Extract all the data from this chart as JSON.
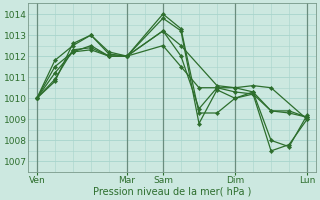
{
  "background_color": "#cce8e0",
  "grid_color": "#a8d4cc",
  "line_color": "#2d6e2d",
  "marker_color": "#2d6e2d",
  "xlabel": "Pression niveau de la mer( hPa )",
  "ylim": [
    1006.5,
    1014.5
  ],
  "yticks": [
    1007,
    1008,
    1009,
    1010,
    1011,
    1012,
    1013,
    1014
  ],
  "x_day_labels": [
    "Ven",
    "Mar",
    "Sam",
    "Dim",
    "Lun"
  ],
  "x_day_positions": [
    0,
    10,
    14,
    22,
    30
  ],
  "x_separator_positions": [
    0,
    10,
    14,
    22,
    30
  ],
  "xlim": [
    -1,
    31
  ],
  "series": [
    {
      "x": [
        0,
        2,
        4,
        6,
        8,
        10,
        14,
        16,
        20,
        22,
        24,
        26,
        30
      ],
      "y": [
        1010.0,
        1010.8,
        1012.6,
        1013.0,
        1012.2,
        1012.0,
        1013.2,
        1012.5,
        1010.6,
        1010.5,
        1010.6,
        1010.5,
        1009.0
      ]
    },
    {
      "x": [
        0,
        2,
        4,
        6,
        8,
        10,
        14,
        16,
        18,
        20,
        22,
        24,
        26,
        28,
        30
      ],
      "y": [
        1010.0,
        1011.8,
        1012.5,
        1013.0,
        1012.1,
        1012.0,
        1014.0,
        1013.3,
        1009.3,
        1009.3,
        1010.0,
        1010.3,
        1009.4,
        1009.4,
        1009.1
      ]
    },
    {
      "x": [
        0,
        2,
        4,
        6,
        8,
        10,
        14,
        16,
        18,
        20,
        22,
        24,
        26,
        28,
        30
      ],
      "y": [
        1010.0,
        1011.5,
        1012.2,
        1012.5,
        1012.0,
        1012.0,
        1013.8,
        1013.2,
        1008.8,
        1010.4,
        1010.0,
        1010.2,
        1007.5,
        1007.8,
        1009.0
      ]
    },
    {
      "x": [
        0,
        2,
        4,
        6,
        8,
        10,
        14,
        16,
        18,
        20,
        22,
        24,
        26,
        28,
        30
      ],
      "y": [
        1010.0,
        1011.2,
        1012.2,
        1012.3,
        1012.0,
        1012.0,
        1013.2,
        1012.0,
        1009.5,
        1010.5,
        1010.5,
        1010.3,
        1008.0,
        1007.7,
        1009.2
      ]
    },
    {
      "x": [
        0,
        2,
        4,
        6,
        8,
        10,
        14,
        16,
        18,
        20,
        22,
        24,
        26,
        28,
        30
      ],
      "y": [
        1010.0,
        1010.9,
        1012.3,
        1012.4,
        1012.0,
        1012.0,
        1012.5,
        1011.5,
        1010.5,
        1010.5,
        1010.3,
        1010.2,
        1009.4,
        1009.3,
        1009.1
      ]
    }
  ],
  "figsize": [
    3.2,
    2.0
  ],
  "dpi": 100
}
